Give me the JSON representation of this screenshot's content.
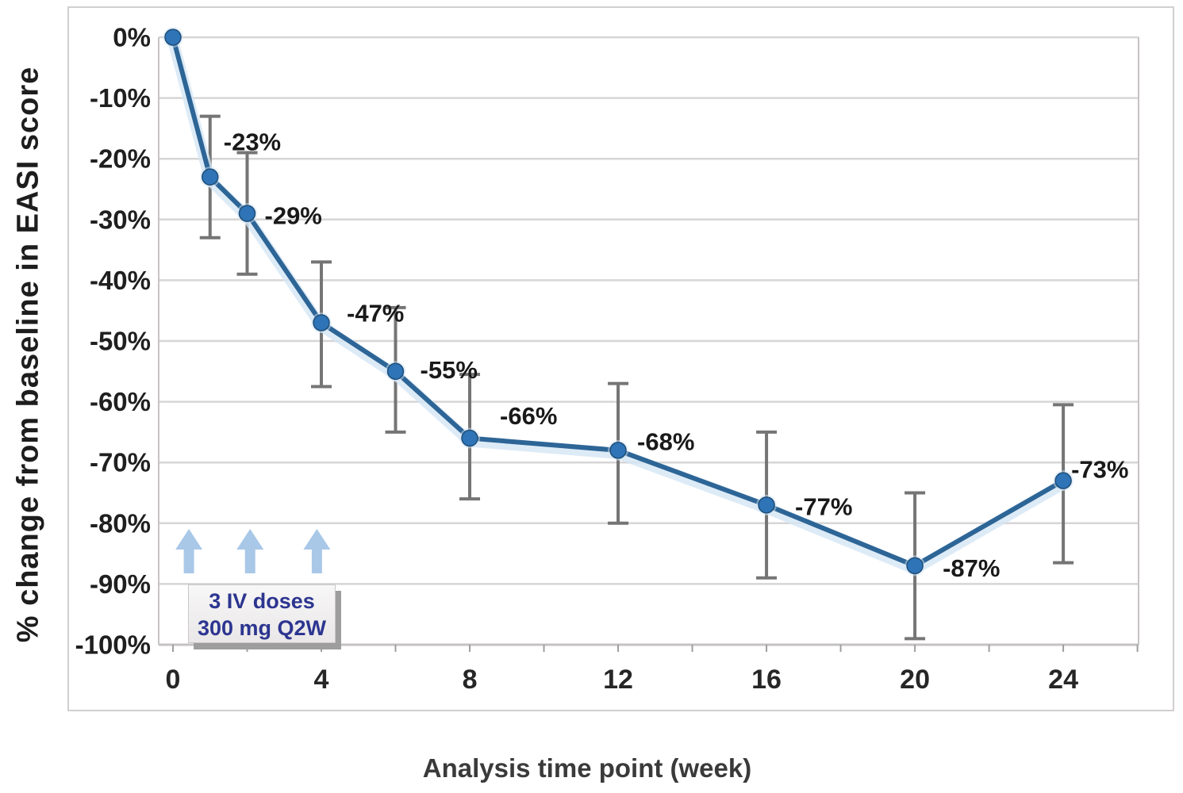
{
  "annotation": {
    "line1": "3 IV doses",
    "line2": "300 mg Q2W"
  },
  "chart_data": {
    "type": "line",
    "title": "",
    "xlabel": "Analysis time point (week)",
    "ylabel": "% change from baseline in EASI score",
    "xlim": [
      -0.385,
      26.03
    ],
    "ylim": [
      -100,
      0
    ],
    "grid": "horizontal",
    "legend": "none",
    "series": [
      {
        "points": [
          {
            "week": 0,
            "value": 0,
            "label": "",
            "err_hi": null,
            "err_lo": null,
            "label_offset": null
          },
          {
            "week": 1,
            "value": -23,
            "label": "-23%",
            "err_hi": -13,
            "err_lo": -33,
            "label_offset": [
              17,
              -44
            ]
          },
          {
            "week": 2,
            "value": -29,
            "label": "-29%",
            "err_hi": -19,
            "err_lo": -39,
            "label_offset": [
              22,
              3
            ]
          },
          {
            "week": 4,
            "value": -47,
            "label": "-47%",
            "err_hi": -37,
            "err_lo": -57.5,
            "label_offset": [
              32,
              -12
            ]
          },
          {
            "week": 6,
            "value": -55,
            "label": "-55%",
            "err_hi": -44.5,
            "err_lo": -65,
            "label_offset": [
              31,
              -2
            ]
          },
          {
            "week": 8,
            "value": -66,
            "label": "-66%",
            "err_hi": -55.5,
            "err_lo": -76,
            "label_offset": [
              38,
              -28
            ]
          },
          {
            "week": 12,
            "value": -68,
            "label": "-68%",
            "err_hi": -57,
            "err_lo": -80,
            "label_offset": [
              24,
              -11
            ]
          },
          {
            "week": 16,
            "value": -77,
            "label": "-77%",
            "err_hi": -65,
            "err_lo": -89,
            "label_offset": [
              36,
              2
            ]
          },
          {
            "week": 20,
            "value": -87,
            "label": "-87%",
            "err_hi": -75,
            "err_lo": -99,
            "label_offset": [
              35,
              3
            ]
          },
          {
            "week": 24,
            "value": -73,
            "label": "-73%",
            "err_hi": -60.5,
            "err_lo": -86.5,
            "label_offset": [
              10,
              -14
            ]
          }
        ]
      }
    ],
    "x_ticks": [
      {
        "week": 0,
        "label": "0"
      },
      {
        "week": 4,
        "label": "4"
      },
      {
        "week": 8,
        "label": "8"
      },
      {
        "week": 12,
        "label": "12"
      },
      {
        "week": 16,
        "label": "16"
      },
      {
        "week": 20,
        "label": "20"
      },
      {
        "week": 24,
        "label": "24"
      }
    ],
    "y_ticks": [
      {
        "value": 0,
        "label": "0%"
      },
      {
        "value": -10,
        "label": "-10%"
      },
      {
        "value": -20,
        "label": "-20%"
      },
      {
        "value": -30,
        "label": "-30%"
      },
      {
        "value": -40,
        "label": "-40%"
      },
      {
        "value": -50,
        "label": "-50%"
      },
      {
        "value": -60,
        "label": "-60%"
      },
      {
        "value": -70,
        "label": "-70%"
      },
      {
        "value": -80,
        "label": "-80%"
      },
      {
        "value": -90,
        "label": "-90%"
      },
      {
        "value": -100,
        "label": "-100%"
      }
    ],
    "minor_tick_weeks": [
      0,
      2,
      4,
      6,
      8,
      10,
      12,
      14,
      16,
      18,
      20,
      22,
      24,
      26
    ],
    "dose_arrows": {
      "weeks": [
        0.43,
        2.08,
        3.88
      ],
      "color": "#a9c8e8"
    },
    "colors": {
      "line": "#2d6596",
      "line_halo": "#d4e6f5",
      "marker": "#2e74b6",
      "marker_edge": "#1f4e79",
      "error_bar": "#757575",
      "gridline": "#d7d5d5",
      "axis": "#c4c1c1",
      "plot_border": "#c7c3c3",
      "tick": "#a09d9d"
    }
  }
}
